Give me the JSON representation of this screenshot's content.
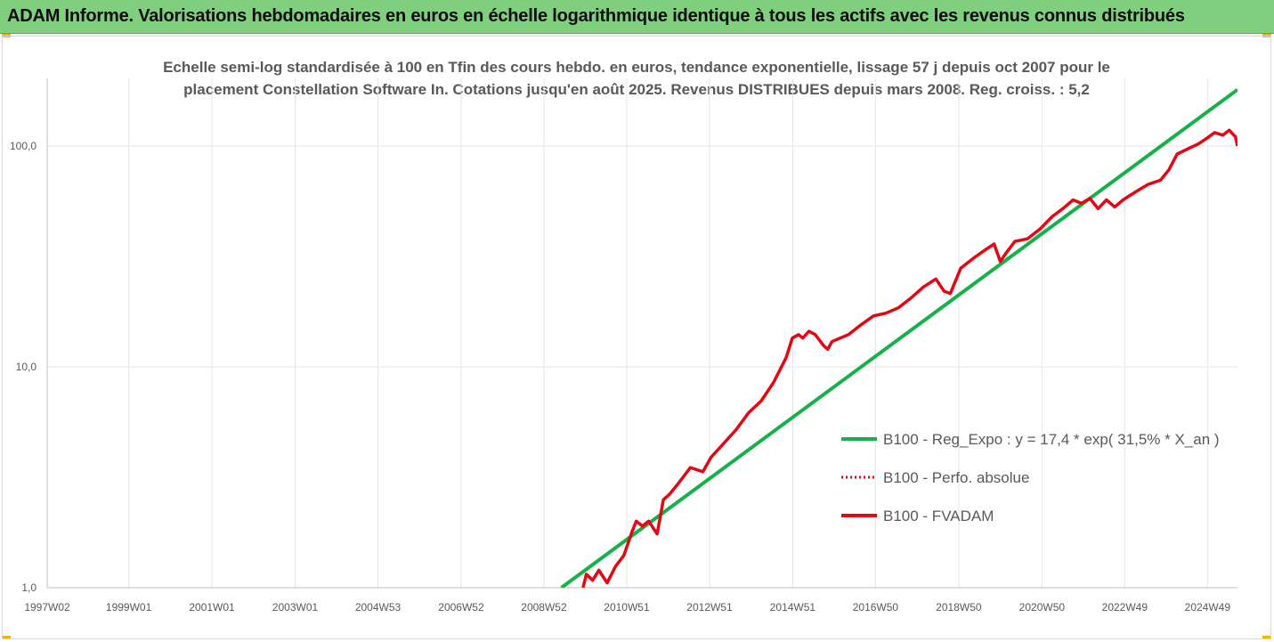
{
  "header": {
    "title": "ADAM Informe. Valorisations hebdomadaires en euros en échelle logarithmique identique à tous les actifs avec les revenus connus distribués"
  },
  "colors": {
    "banner": "#7fcf7f",
    "regression": "#18b04a",
    "fvadam": "#e30613",
    "perfo": "#e30613",
    "grid": "#e6e6e6"
  },
  "chart_data": {
    "type": "line",
    "title": "Echelle semi-log standardisée à 100 en Tfin des cours hebdo. en euros, tendance exponentielle, lissage 57 j depuis oct 2007 pour le placement Constellation Software In. Cotations jusqu'en août 2025. Revenus DISTRIBUES depuis mars 2008. Reg. croiss. : 5,2",
    "y_scale": "log",
    "ylim": [
      1,
      180
    ],
    "y_ticks": [
      {
        "value": 1,
        "label": "1,0"
      },
      {
        "value": 10,
        "label": "10,0"
      },
      {
        "value": 100,
        "label": "100,0"
      }
    ],
    "xlim": [
      1997.04,
      2025.65
    ],
    "x_ticks": [
      {
        "value": 1997.04,
        "label": "1997W02"
      },
      {
        "value": 1999.0,
        "label": "1999W01"
      },
      {
        "value": 2001.0,
        "label": "2001W01"
      },
      {
        "value": 2003.0,
        "label": "2003W01"
      },
      {
        "value": 2004.99,
        "label": "2004W53"
      },
      {
        "value": 2006.99,
        "label": "2006W52"
      },
      {
        "value": 2008.98,
        "label": "2008W52"
      },
      {
        "value": 2010.97,
        "label": "2010W51"
      },
      {
        "value": 2012.96,
        "label": "2012W51"
      },
      {
        "value": 2014.96,
        "label": "2014W51"
      },
      {
        "value": 2016.95,
        "label": "2016W50"
      },
      {
        "value": 2018.95,
        "label": "2018W50"
      },
      {
        "value": 2020.95,
        "label": "2020W50"
      },
      {
        "value": 2022.94,
        "label": "2022W49"
      },
      {
        "value": 2024.93,
        "label": "2024W49"
      }
    ],
    "legend_position": "right",
    "series": [
      {
        "name": "B100 - Reg_Expo : y = 17,4 * exp( 31,5% *  X_an )",
        "style": "solid",
        "x": [
          2009.4,
          2025.65
        ],
        "y": [
          1.0,
          180
        ]
      },
      {
        "name": "B100 - Perfo. absolue",
        "style": "dotted",
        "x": [],
        "y": []
      },
      {
        "name": "B100 - FVADAM",
        "style": "solid",
        "x": [
          2009.92,
          2010.0,
          2010.15,
          2010.3,
          2010.5,
          2010.7,
          2010.9,
          2011.1,
          2011.2,
          2011.35,
          2011.5,
          2011.7,
          2011.85,
          2012.0,
          2012.2,
          2012.5,
          2012.8,
          2013.0,
          2013.3,
          2013.6,
          2013.9,
          2014.2,
          2014.5,
          2014.8,
          2014.95,
          2015.1,
          2015.2,
          2015.35,
          2015.5,
          2015.7,
          2015.8,
          2015.9,
          2016.1,
          2016.3,
          2016.6,
          2016.9,
          2017.2,
          2017.5,
          2017.8,
          2018.1,
          2018.4,
          2018.6,
          2018.75,
          2019.0,
          2019.3,
          2019.6,
          2019.8,
          2019.95,
          2020.1,
          2020.3,
          2020.6,
          2020.9,
          2021.2,
          2021.45,
          2021.7,
          2021.9,
          2022.1,
          2022.3,
          2022.5,
          2022.7,
          2022.9,
          2023.2,
          2023.5,
          2023.8,
          2024.0,
          2024.2,
          2024.5,
          2024.7,
          2024.9,
          2025.1,
          2025.3,
          2025.45,
          2025.6,
          2025.65
        ],
        "y": [
          1.0,
          1.15,
          1.08,
          1.2,
          1.05,
          1.25,
          1.4,
          1.8,
          2.0,
          1.9,
          2.0,
          1.75,
          2.5,
          2.65,
          2.95,
          3.5,
          3.35,
          3.9,
          4.5,
          5.2,
          6.2,
          7.0,
          8.5,
          11.0,
          13.5,
          14.0,
          13.5,
          14.5,
          14.0,
          12.5,
          12.0,
          13.0,
          13.5,
          14.0,
          15.5,
          17.0,
          17.5,
          18.5,
          20.5,
          23.0,
          25.0,
          22.0,
          21.5,
          28.0,
          31.0,
          34.0,
          36.0,
          30.0,
          33.0,
          37.0,
          38.0,
          42.0,
          48.0,
          52.0,
          57.0,
          55.0,
          58.0,
          52.0,
          57.0,
          53.0,
          57.0,
          62.0,
          67.0,
          70.0,
          78.0,
          92.0,
          98.0,
          102.0,
          108.0,
          115.0,
          112.0,
          118.0,
          110.0,
          100.0
        ]
      }
    ]
  }
}
